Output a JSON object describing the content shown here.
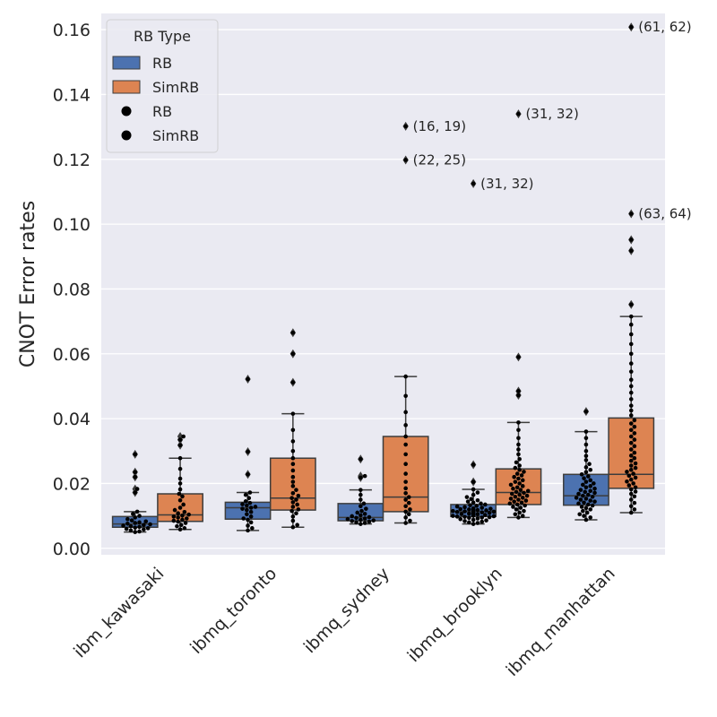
{
  "chart_data": {
    "type": "box",
    "title": "",
    "xlabel": "",
    "ylabel": "CNOT Error rates",
    "ylim": [
      -0.002,
      0.165
    ],
    "yticks": [
      0.0,
      0.02,
      0.04,
      0.06,
      0.08,
      0.1,
      0.12,
      0.14,
      0.16
    ],
    "ytick_labels": [
      "0.00",
      "0.02",
      "0.04",
      "0.06",
      "0.08",
      "0.10",
      "0.12",
      "0.14",
      "0.16"
    ],
    "grid": true,
    "categories": [
      "ibm_kawasaki",
      "ibmq_toronto",
      "ibmq_sydney",
      "ibmq_brooklyn",
      "ibmq_manhattan"
    ],
    "series": [
      {
        "name": "RB",
        "color": "#4c72b0",
        "boxes": [
          {
            "q1": 0.0065,
            "median": 0.0075,
            "q3": 0.0098,
            "whislo": 0.005,
            "whishi": 0.0113,
            "fliers": [
              0.0172,
              0.0183,
              0.022,
              0.0235,
              0.029
            ]
          },
          {
            "q1": 0.009,
            "median": 0.0125,
            "q3": 0.0142,
            "whislo": 0.0055,
            "whishi": 0.0172,
            "fliers": [
              0.0228,
              0.0298,
              0.0522
            ]
          },
          {
            "q1": 0.0085,
            "median": 0.0095,
            "q3": 0.0138,
            "whislo": 0.0075,
            "whishi": 0.018,
            "fliers": [
              0.0218,
              0.0223,
              0.0275
            ]
          },
          {
            "q1": 0.0098,
            "median": 0.0113,
            "q3": 0.0135,
            "whislo": 0.0075,
            "whishi": 0.0182,
            "fliers": [
              0.0205,
              0.0258,
              0.1125
            ]
          },
          {
            "q1": 0.0133,
            "median": 0.0162,
            "q3": 0.0228,
            "whislo": 0.0088,
            "whishi": 0.036,
            "fliers": [
              0.0422
            ]
          }
        ]
      },
      {
        "name": "SimRB",
        "color": "#dd8452",
        "boxes": [
          {
            "q1": 0.0083,
            "median": 0.0103,
            "q3": 0.0168,
            "whislo": 0.0058,
            "whishi": 0.0278,
            "fliers": [
              0.0318,
              0.0335,
              0.0345
            ]
          },
          {
            "q1": 0.0118,
            "median": 0.0155,
            "q3": 0.0278,
            "whislo": 0.0065,
            "whishi": 0.0415,
            "fliers": [
              0.0512,
              0.06,
              0.0665
            ]
          },
          {
            "q1": 0.0113,
            "median": 0.0158,
            "q3": 0.0345,
            "whislo": 0.0078,
            "whishi": 0.053,
            "fliers": [
              0.1198,
              0.1302
            ]
          },
          {
            "q1": 0.0135,
            "median": 0.0172,
            "q3": 0.0245,
            "whislo": 0.0095,
            "whishi": 0.0388,
            "fliers": [
              0.0472,
              0.0485,
              0.059,
              0.134
            ]
          },
          {
            "q1": 0.0185,
            "median": 0.0228,
            "q3": 0.0402,
            "whislo": 0.011,
            "whishi": 0.0715,
            "fliers": [
              0.0752,
              0.0918,
              0.0952,
              0.1032,
              0.1608
            ]
          }
        ]
      }
    ],
    "points": [
      {
        "category": 0,
        "series": 0,
        "values": [
          0.005,
          0.0052,
          0.0055,
          0.0058,
          0.006,
          0.0062,
          0.0064,
          0.0066,
          0.0068,
          0.007,
          0.0072,
          0.0074,
          0.0076,
          0.0078,
          0.008,
          0.0083,
          0.0086,
          0.009,
          0.0095,
          0.01,
          0.0106,
          0.0113,
          0.0172,
          0.0183,
          0.022,
          0.0235,
          0.029
        ]
      },
      {
        "category": 0,
        "series": 1,
        "values": [
          0.0058,
          0.0062,
          0.0068,
          0.0072,
          0.0078,
          0.0082,
          0.0085,
          0.0088,
          0.0092,
          0.0095,
          0.0098,
          0.0101,
          0.0104,
          0.0108,
          0.0112,
          0.0118,
          0.0125,
          0.0135,
          0.0148,
          0.016,
          0.0168,
          0.0182,
          0.02,
          0.0215,
          0.0245,
          0.0278,
          0.0318,
          0.0335,
          0.0345
        ]
      },
      {
        "category": 1,
        "series": 0,
        "values": [
          0.0055,
          0.0062,
          0.007,
          0.008,
          0.0088,
          0.0092,
          0.0098,
          0.0105,
          0.0112,
          0.0118,
          0.0122,
          0.0125,
          0.0128,
          0.0132,
          0.0136,
          0.014,
          0.0145,
          0.0155,
          0.0165,
          0.0172,
          0.0228,
          0.0298,
          0.0522
        ]
      },
      {
        "category": 1,
        "series": 1,
        "values": [
          0.0065,
          0.0072,
          0.0085,
          0.0098,
          0.0108,
          0.0115,
          0.012,
          0.0128,
          0.0135,
          0.0142,
          0.015,
          0.0155,
          0.0162,
          0.017,
          0.018,
          0.0192,
          0.0205,
          0.022,
          0.024,
          0.026,
          0.0278,
          0.03,
          0.033,
          0.0365,
          0.0415,
          0.0512,
          0.06,
          0.0665
        ]
      },
      {
        "category": 2,
        "series": 0,
        "values": [
          0.0075,
          0.0078,
          0.008,
          0.0082,
          0.0084,
          0.0086,
          0.0088,
          0.009,
          0.0092,
          0.0094,
          0.0096,
          0.0099,
          0.0102,
          0.0106,
          0.011,
          0.0115,
          0.0122,
          0.013,
          0.0138,
          0.015,
          0.0165,
          0.018,
          0.0218,
          0.0223,
          0.0275
        ]
      },
      {
        "category": 2,
        "series": 1,
        "values": [
          0.0078,
          0.0085,
          0.0095,
          0.0105,
          0.0113,
          0.012,
          0.013,
          0.014,
          0.015,
          0.0158,
          0.017,
          0.0185,
          0.0205,
          0.023,
          0.026,
          0.029,
          0.032,
          0.0345,
          0.038,
          0.042,
          0.047,
          0.053,
          0.1198,
          0.1302
        ]
      },
      {
        "category": 3,
        "series": 0,
        "values": [
          0.0075,
          0.0078,
          0.008,
          0.0082,
          0.0084,
          0.0086,
          0.0088,
          0.009,
          0.0092,
          0.0094,
          0.0095,
          0.0096,
          0.0097,
          0.0098,
          0.0099,
          0.01,
          0.0101,
          0.0102,
          0.0103,
          0.0104,
          0.0105,
          0.0106,
          0.0107,
          0.0108,
          0.0109,
          0.011,
          0.0111,
          0.0112,
          0.0113,
          0.0114,
          0.0115,
          0.0116,
          0.0117,
          0.0118,
          0.0119,
          0.012,
          0.0121,
          0.0122,
          0.0123,
          0.0125,
          0.0127,
          0.0129,
          0.0131,
          0.0133,
          0.0135,
          0.0138,
          0.0141,
          0.0144,
          0.0148,
          0.0152,
          0.0158,
          0.0165,
          0.0172,
          0.0182,
          0.0205,
          0.0258,
          0.1125
        ]
      },
      {
        "category": 3,
        "series": 1,
        "values": [
          0.0095,
          0.01,
          0.0105,
          0.011,
          0.0115,
          0.012,
          0.0125,
          0.0128,
          0.0132,
          0.0135,
          0.0138,
          0.0141,
          0.0144,
          0.0147,
          0.015,
          0.0153,
          0.0156,
          0.0159,
          0.0162,
          0.0165,
          0.0168,
          0.0171,
          0.0174,
          0.0177,
          0.018,
          0.0184,
          0.0188,
          0.0192,
          0.0196,
          0.02,
          0.0205,
          0.021,
          0.0215,
          0.022,
          0.0225,
          0.023,
          0.0236,
          0.0242,
          0.0248,
          0.0255,
          0.0265,
          0.0275,
          0.029,
          0.0305,
          0.032,
          0.034,
          0.0365,
          0.0388,
          0.0472,
          0.0485,
          0.059,
          0.134
        ]
      },
      {
        "category": 4,
        "series": 0,
        "values": [
          0.0088,
          0.0095,
          0.01,
          0.0105,
          0.011,
          0.0115,
          0.012,
          0.0124,
          0.0128,
          0.0132,
          0.0135,
          0.0138,
          0.0141,
          0.0144,
          0.0147,
          0.015,
          0.0153,
          0.0156,
          0.0159,
          0.0162,
          0.0165,
          0.0168,
          0.0171,
          0.0174,
          0.0177,
          0.018,
          0.0184,
          0.0188,
          0.0192,
          0.0196,
          0.02,
          0.0205,
          0.021,
          0.0216,
          0.0222,
          0.0228,
          0.0235,
          0.0242,
          0.025,
          0.026,
          0.0272,
          0.0285,
          0.03,
          0.032,
          0.034,
          0.036,
          0.0422
        ]
      },
      {
        "category": 4,
        "series": 1,
        "values": [
          0.011,
          0.012,
          0.013,
          0.014,
          0.015,
          0.016,
          0.0168,
          0.0175,
          0.0182,
          0.0188,
          0.0194,
          0.02,
          0.0206,
          0.0212,
          0.0218,
          0.0224,
          0.023,
          0.0236,
          0.0242,
          0.0248,
          0.0255,
          0.0262,
          0.027,
          0.0278,
          0.0286,
          0.0295,
          0.0305,
          0.0315,
          0.0325,
          0.0335,
          0.0345,
          0.0355,
          0.0365,
          0.0375,
          0.0385,
          0.0395,
          0.041,
          0.0425,
          0.044,
          0.046,
          0.048,
          0.05,
          0.052,
          0.0545,
          0.057,
          0.06,
          0.063,
          0.066,
          0.069,
          0.0715,
          0.0752,
          0.0918,
          0.0952,
          0.1032,
          0.1608
        ]
      }
    ],
    "annotations": [
      {
        "text": "(16, 19)",
        "category": 2,
        "series": 1,
        "y": 0.1302
      },
      {
        "text": "(22, 25)",
        "category": 2,
        "series": 1,
        "y": 0.1198
      },
      {
        "text": "(31, 32)",
        "category": 3,
        "series": 0,
        "y": 0.1125
      },
      {
        "text": "(31, 32)",
        "category": 3,
        "series": 1,
        "y": 0.134
      },
      {
        "text": "(61, 62)",
        "category": 4,
        "series": 1,
        "y": 0.1608
      },
      {
        "text": "(63, 64)",
        "category": 4,
        "series": 1,
        "y": 0.1032
      }
    ],
    "legend": {
      "title": "RB Type",
      "position": "top-left",
      "entries": [
        {
          "label": "RB",
          "kind": "box",
          "color": "#4c72b0"
        },
        {
          "label": "SimRB",
          "kind": "box",
          "color": "#dd8452"
        },
        {
          "label": "RB",
          "kind": "dot",
          "color": "#000000"
        },
        {
          "label": "SimRB",
          "kind": "dot",
          "color": "#000000"
        }
      ]
    },
    "colors": {
      "background": "#eaeaf2",
      "grid": "#ffffff",
      "edge": "#3d3d3d"
    }
  }
}
